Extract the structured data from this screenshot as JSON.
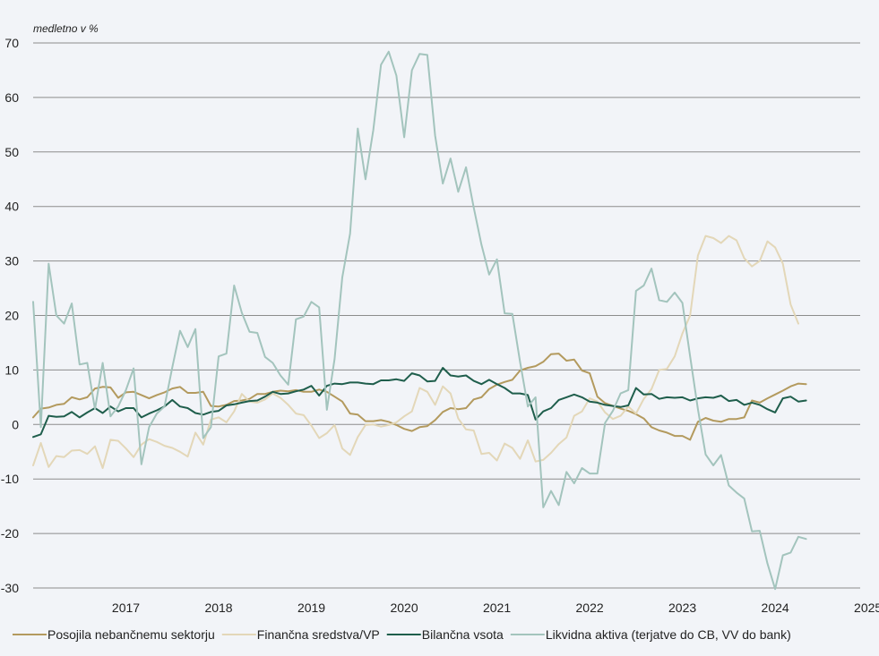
{
  "chart_data": {
    "type": "line",
    "ylabel": "medletno v %",
    "ylim": [
      -30,
      70
    ],
    "yticks": [
      -30,
      -20,
      -10,
      0,
      10,
      20,
      30,
      40,
      50,
      60,
      70
    ],
    "xlim": [
      "2016-07",
      "2025-06"
    ],
    "xticks": [
      "2017",
      "2018",
      "2019",
      "2020",
      "2021",
      "2022",
      "2023",
      "2024",
      "2025"
    ],
    "grid": "horizontal",
    "legend_position": "bottom",
    "x": [
      "2016-07",
      "2016-08",
      "2016-09",
      "2016-10",
      "2016-11",
      "2016-12",
      "2017-01",
      "2017-02",
      "2017-03",
      "2017-04",
      "2017-05",
      "2017-06",
      "2017-07",
      "2017-08",
      "2017-09",
      "2017-10",
      "2017-11",
      "2017-12",
      "2018-01",
      "2018-02",
      "2018-03",
      "2018-04",
      "2018-05",
      "2018-06",
      "2018-07",
      "2018-08",
      "2018-09",
      "2018-10",
      "2018-11",
      "2018-12",
      "2019-01",
      "2019-02",
      "2019-03",
      "2019-04",
      "2019-05",
      "2019-06",
      "2019-07",
      "2019-08",
      "2019-09",
      "2019-10",
      "2019-11",
      "2019-12",
      "2020-01",
      "2020-02",
      "2020-03",
      "2020-04",
      "2020-05",
      "2020-06",
      "2020-07",
      "2020-08",
      "2020-09",
      "2020-10",
      "2020-11",
      "2020-12",
      "2021-01",
      "2021-02",
      "2021-03",
      "2021-04",
      "2021-05",
      "2021-06",
      "2021-07",
      "2021-08",
      "2021-09",
      "2021-10",
      "2021-11",
      "2021-12",
      "2022-01",
      "2022-02",
      "2022-03",
      "2022-04",
      "2022-05",
      "2022-06",
      "2022-07",
      "2022-08",
      "2022-09",
      "2022-10",
      "2022-11",
      "2022-12",
      "2023-01",
      "2023-02",
      "2023-03",
      "2023-04",
      "2023-05",
      "2023-06",
      "2023-07",
      "2023-08",
      "2023-09",
      "2023-10",
      "2023-11",
      "2023-12",
      "2024-01",
      "2024-02",
      "2024-03",
      "2024-04",
      "2024-05",
      "2024-06",
      "2024-07",
      "2024-08",
      "2024-09",
      "2024-10",
      "2024-11"
    ],
    "series": [
      {
        "name": "Posojila nebančnemu sektorju",
        "color": "#b39a5e",
        "values": [
          1.3,
          2.9,
          3.1,
          3.6,
          3.8,
          5.0,
          4.6,
          5.0,
          6.6,
          6.9,
          6.8,
          4.9,
          5.9,
          6.0,
          5.4,
          4.8,
          5.4,
          5.9,
          6.6,
          6.9,
          5.8,
          5.8,
          6.0,
          3.4,
          3.3,
          3.6,
          4.3,
          4.4,
          4.7,
          5.6,
          5.6,
          6.0,
          6.2,
          6.1,
          6.3,
          6.0,
          6.0,
          6.4,
          6.0,
          5.1,
          4.2,
          2.0,
          1.8,
          0.6,
          0.6,
          0.8,
          0.5,
          -0.1,
          -0.8,
          -1.2,
          -0.5,
          -0.3,
          0.8,
          2.3,
          3.0,
          2.8,
          3.0,
          4.6,
          5.0,
          6.5,
          7.3,
          7.8,
          8.2,
          9.9,
          10.4,
          10.7,
          11.5,
          12.9,
          13.0,
          11.7,
          11.9,
          9.9,
          9.4,
          5.1,
          3.9,
          3.4,
          2.9,
          2.5,
          1.9,
          1.1,
          -0.5,
          -1.1,
          -1.5,
          -2.1,
          -2.1,
          -2.8,
          0.5,
          1.2,
          0.7,
          0.5,
          1.0,
          1.0,
          1.3,
          4.4,
          4.0,
          4.8,
          5.5,
          6.2,
          7.0,
          7.5,
          7.4
        ]
      },
      {
        "name": "Finančna sredstva/VP",
        "color": "#e3d7b8",
        "values": [
          -7.5,
          -3.4,
          -7.8,
          -5.8,
          -6.0,
          -4.8,
          -4.7,
          -5.4,
          -4.0,
          -8.0,
          -2.8,
          -3.0,
          -4.4,
          -6.0,
          -3.7,
          -2.7,
          -3.2,
          -3.9,
          -4.3,
          -5.0,
          -5.9,
          -1.5,
          -3.7,
          0.9,
          1.3,
          0.4,
          2.4,
          5.6,
          4.2,
          4.0,
          4.6,
          5.7,
          4.9,
          3.6,
          2.0,
          1.7,
          -0.2,
          -2.5,
          -1.6,
          -0.1,
          -4.4,
          -5.6,
          -2.3,
          -0.1,
          0.0,
          -0.4,
          -0.1,
          0.4,
          1.5,
          2.4,
          6.7,
          6.0,
          3.6,
          7.0,
          5.7,
          1.1,
          -0.9,
          -1.1,
          -5.4,
          -5.2,
          -6.6,
          -3.5,
          -4.3,
          -6.3,
          -2.9,
          -6.8,
          -6.5,
          -5.2,
          -3.6,
          -2.4,
          1.6,
          2.4,
          4.8,
          4.2,
          2.2,
          1.0,
          1.6,
          3.3,
          2.0,
          4.7,
          6.5,
          10.0,
          10.2,
          12.5,
          16.7,
          20.0,
          31.0,
          34.6,
          34.2,
          33.3,
          34.6,
          33.8,
          30.5,
          29.0,
          30.0,
          33.6,
          32.5,
          29.5,
          22.0,
          18.5,
          null
        ]
      },
      {
        "name": "Bilančna vsota",
        "color": "#1f5e4c",
        "values": [
          -2.3,
          -1.8,
          1.6,
          1.4,
          1.5,
          2.3,
          1.3,
          2.2,
          3.0,
          2.1,
          3.3,
          2.4,
          3.0,
          3.0,
          1.3,
          2.0,
          2.6,
          3.3,
          4.5,
          3.3,
          3.0,
          2.1,
          1.8,
          2.3,
          2.5,
          3.5,
          3.7,
          4.0,
          4.3,
          4.4,
          5.1,
          6.0,
          5.6,
          5.7,
          6.1,
          6.4,
          7.1,
          5.3,
          7.1,
          7.5,
          7.4,
          7.7,
          7.7,
          7.5,
          7.4,
          8.1,
          8.1,
          8.3,
          8.0,
          9.4,
          9.0,
          7.9,
          8.0,
          10.4,
          9.0,
          8.8,
          9.0,
          8.0,
          7.4,
          8.2,
          7.4,
          6.7,
          5.7,
          5.7,
          5.4,
          0.9,
          2.4,
          3.0,
          4.5,
          5.0,
          5.5,
          5.0,
          4.2,
          4.0,
          3.6,
          3.4,
          3.2,
          3.5,
          6.7,
          5.5,
          5.6,
          4.7,
          5.0,
          4.9,
          5.0,
          4.4,
          4.8,
          5.0,
          4.9,
          5.3,
          4.3,
          4.5,
          3.6,
          4.0,
          3.6,
          2.8,
          2.2,
          4.8,
          5.1,
          4.2,
          4.4
        ]
      },
      {
        "name": "Likvidna aktiva (terjatve do CB, VV do bank)",
        "color": "#a3c4bd",
        "values": [
          22.5,
          -0.5,
          29.5,
          20.0,
          18.5,
          22.2,
          11.0,
          11.3,
          2.8,
          11.3,
          1.5,
          3.3,
          6.3,
          10.3,
          -7.3,
          -0.5,
          2.0,
          3.3,
          10.5,
          17.2,
          14.2,
          17.5,
          -2.5,
          -0.5,
          12.5,
          13.0,
          25.5,
          20.5,
          17.0,
          16.8,
          12.4,
          11.3,
          9.0,
          7.3,
          19.3,
          19.8,
          22.5,
          21.5,
          2.7,
          12.0,
          27.0,
          35.0,
          54.3,
          45.0,
          54.0,
          66.0,
          68.4,
          64.0,
          52.7,
          65.0,
          68.0,
          67.8,
          53.0,
          44.2,
          48.8,
          42.7,
          47.2,
          39.8,
          33.0,
          27.5,
          30.3,
          20.4,
          20.3,
          11.5,
          3.3,
          5.0,
          -15.2,
          -12.2,
          -14.8,
          -8.7,
          -10.8,
          -8.0,
          -9.0,
          -9.0,
          0.3,
          2.5,
          5.7,
          6.3,
          24.5,
          25.5,
          28.6,
          22.8,
          22.5,
          24.2,
          22.3,
          12.5,
          2.8,
          -5.5,
          -7.5,
          -5.6,
          -11.2,
          -12.5,
          -13.6,
          -19.6,
          -19.5,
          -25.5,
          -30.2,
          -24.0,
          -23.5,
          -20.6,
          -21.0
        ]
      }
    ]
  }
}
